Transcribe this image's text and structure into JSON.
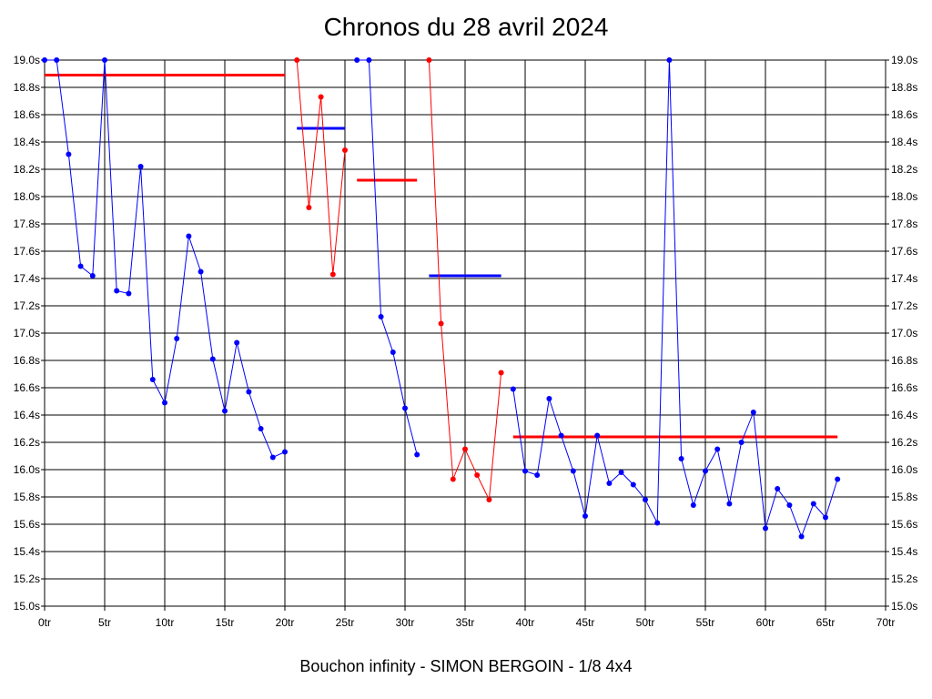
{
  "chart_data": {
    "type": "line",
    "title": "Chronos du 28 avril 2024",
    "caption": "Bouchon infinity - SIMON BERGOIN - 1/8 4x4",
    "xlabel": "",
    "ylabel": "",
    "xlim": [
      0,
      70
    ],
    "ylim": [
      15.0,
      19.0
    ],
    "grid": true,
    "x_ticks": [
      "0tr",
      "5tr",
      "10tr",
      "15tr",
      "20tr",
      "25tr",
      "30tr",
      "35tr",
      "40tr",
      "45tr",
      "50tr",
      "55tr",
      "60tr",
      "65tr",
      "70tr"
    ],
    "y_ticks": [
      "15.0s",
      "15.2s",
      "15.4s",
      "15.6s",
      "15.8s",
      "16.0s",
      "16.2s",
      "16.4s",
      "16.6s",
      "16.8s",
      "17.0s",
      "17.2s",
      "17.4s",
      "17.6s",
      "17.8s",
      "18.0s",
      "18.2s",
      "18.4s",
      "18.6s",
      "18.8s",
      "19.0s"
    ],
    "colors": {
      "blue": "#0000ff",
      "red": "#ff0000",
      "grid": "#000000"
    },
    "series": [
      {
        "color": "#0000ff",
        "points": [
          [
            0,
            19.0
          ],
          [
            1,
            19.0
          ],
          [
            2,
            18.31
          ],
          [
            3,
            17.49
          ],
          [
            4,
            17.42
          ],
          [
            5,
            19.0
          ],
          [
            6,
            17.31
          ],
          [
            7,
            17.29
          ],
          [
            8,
            18.22
          ],
          [
            9,
            16.66
          ],
          [
            10,
            16.49
          ],
          [
            11,
            16.96
          ],
          [
            12,
            17.71
          ],
          [
            13,
            17.45
          ],
          [
            14,
            16.81
          ],
          [
            15,
            16.43
          ],
          [
            16,
            16.93
          ],
          [
            17,
            16.57
          ],
          [
            18,
            16.3
          ],
          [
            19,
            16.09
          ],
          [
            20,
            16.13
          ]
        ]
      },
      {
        "color": "#ff0000",
        "points": [
          [
            21,
            19.0
          ],
          [
            22,
            17.92
          ],
          [
            23,
            18.73
          ],
          [
            24,
            17.43
          ],
          [
            25,
            18.34
          ]
        ]
      },
      {
        "color": "#0000ff",
        "points": [
          [
            26,
            19.0
          ],
          [
            27,
            19.0
          ],
          [
            28,
            17.12
          ],
          [
            29,
            16.86
          ],
          [
            30,
            16.45
          ],
          [
            31,
            16.11
          ]
        ]
      },
      {
        "color": "#ff0000",
        "points": [
          [
            32,
            19.0
          ],
          [
            33,
            17.07
          ],
          [
            34,
            15.93
          ],
          [
            35,
            16.15
          ],
          [
            36,
            15.96
          ],
          [
            37,
            15.78
          ],
          [
            38,
            16.71
          ]
        ]
      },
      {
        "color": "#0000ff",
        "points": [
          [
            39,
            16.59
          ],
          [
            40,
            15.99
          ],
          [
            41,
            15.96
          ],
          [
            42,
            16.52
          ],
          [
            43,
            16.25
          ],
          [
            44,
            15.99
          ],
          [
            45,
            15.66
          ],
          [
            46,
            16.25
          ],
          [
            47,
            15.9
          ],
          [
            48,
            15.98
          ],
          [
            49,
            15.89
          ],
          [
            50,
            15.78
          ],
          [
            51,
            15.61
          ],
          [
            52,
            19.0
          ],
          [
            53,
            16.08
          ],
          [
            54,
            15.74
          ],
          [
            55,
            15.99
          ],
          [
            56,
            16.15
          ],
          [
            57,
            15.75
          ],
          [
            58,
            16.2
          ],
          [
            59,
            16.42
          ],
          [
            60,
            15.57
          ],
          [
            61,
            15.86
          ],
          [
            62,
            15.74
          ],
          [
            63,
            15.51
          ],
          [
            64,
            15.75
          ],
          [
            65,
            15.65
          ],
          [
            66,
            15.93
          ]
        ]
      }
    ],
    "averages": [
      {
        "color": "#ff0000",
        "x": [
          0,
          20
        ],
        "y": 18.89
      },
      {
        "color": "#0000ff",
        "x": [
          21,
          25
        ],
        "y": 18.5
      },
      {
        "color": "#ff0000",
        "x": [
          26,
          31
        ],
        "y": 18.12
      },
      {
        "color": "#0000ff",
        "x": [
          32,
          38
        ],
        "y": 17.42
      },
      {
        "color": "#ff0000",
        "x": [
          39,
          66
        ],
        "y": 16.24
      }
    ]
  }
}
